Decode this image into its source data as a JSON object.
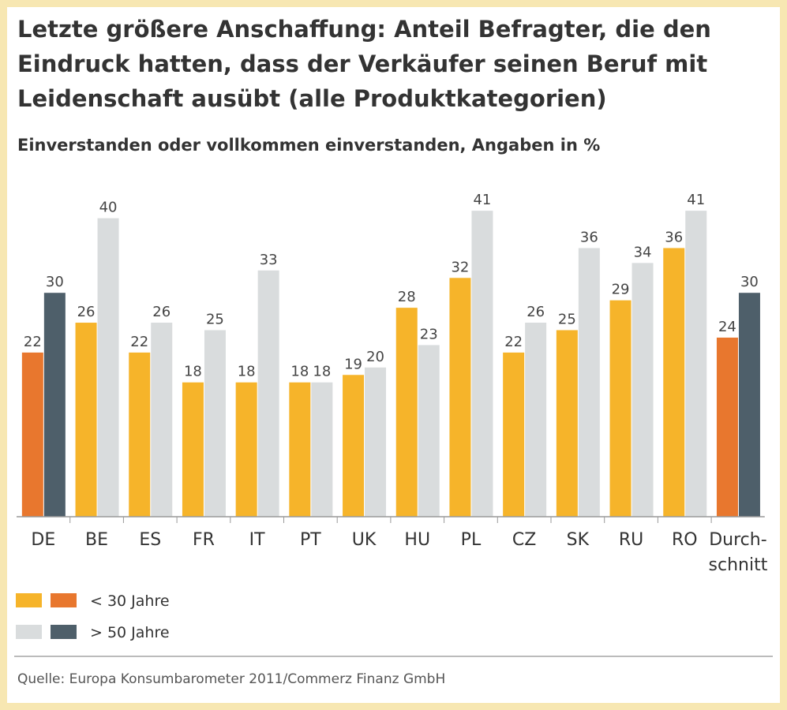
{
  "chart_data": {
    "type": "bar",
    "title": "Letzte größere Anschaffung: Anteil Befragter, die den Eindruck hatten, dass der Verkäufer seinen Beruf mit Leidenschaft ausübt (alle Produktkategorien)",
    "subtitle": "Einverstanden oder vollkommen einverstanden, Angaben in %",
    "source": "Quelle: Europa Konsumbarometer 2011/Commerz Finanz GmbH",
    "categories": [
      "DE",
      "BE",
      "ES",
      "FR",
      "IT",
      "PT",
      "UK",
      "HU",
      "PL",
      "CZ",
      "SK",
      "RU",
      "RO",
      "Durch-\nschnitt"
    ],
    "series": [
      {
        "name": "< 30 Jahre",
        "color": "#f6b42a",
        "colors": [
          "#e8772e",
          "#f6b42a",
          "#f6b42a",
          "#f6b42a",
          "#f6b42a",
          "#f6b42a",
          "#f6b42a",
          "#f6b42a",
          "#f6b42a",
          "#f6b42a",
          "#f6b42a",
          "#f6b42a",
          "#f6b42a",
          "#e8772e"
        ],
        "values": [
          22,
          26,
          22,
          18,
          18,
          18,
          19,
          28,
          32,
          22,
          25,
          29,
          36,
          24
        ]
      },
      {
        "name": "> 50 Jahre",
        "color": "#d9dcdd",
        "colors": [
          "#4e5f6a",
          "#d9dcdd",
          "#d9dcdd",
          "#d9dcdd",
          "#d9dcdd",
          "#d9dcdd",
          "#d9dcdd",
          "#d9dcdd",
          "#d9dcdd",
          "#d9dcdd",
          "#d9dcdd",
          "#d9dcdd",
          "#d9dcdd",
          "#4e5f6a"
        ],
        "values": [
          30,
          40,
          26,
          25,
          33,
          18,
          20,
          23,
          41,
          26,
          36,
          34,
          41,
          30
        ]
      }
    ],
    "ylim": [
      0,
      45
    ]
  }
}
